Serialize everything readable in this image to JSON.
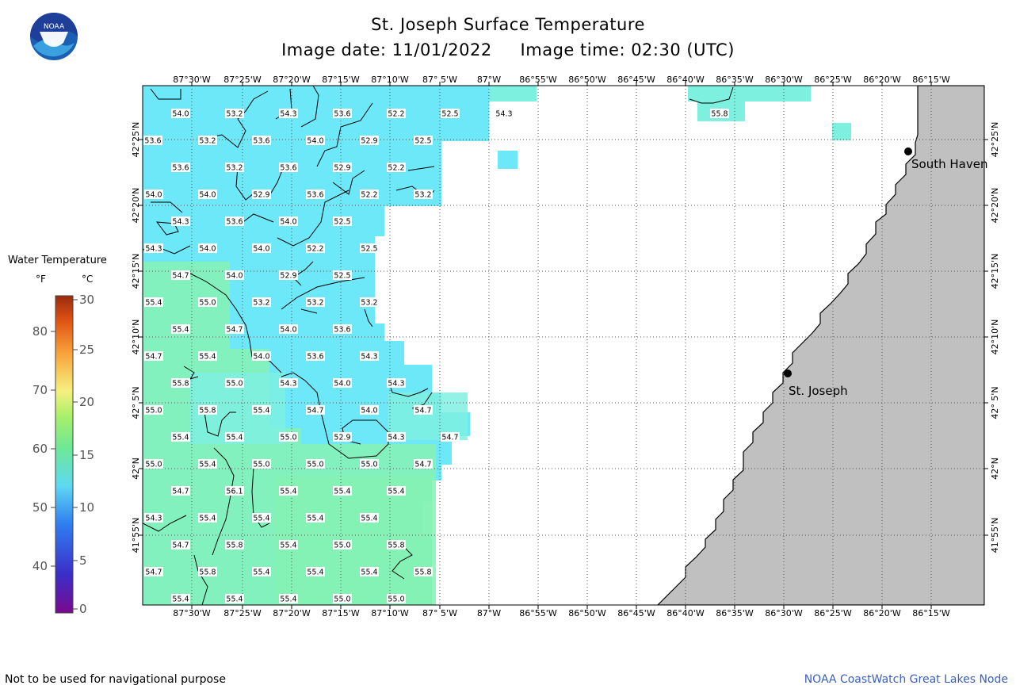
{
  "header": {
    "title": "St. Joseph Surface Temperature",
    "subtitle": "Image date: 11/01/2022     Image time: 02:30 (UTC)"
  },
  "logo": {
    "text": "NOAA",
    "icon": "noaa-logo-icon"
  },
  "legend": {
    "title": "Water Temperature",
    "unit_f": "°F",
    "unit_c": "°C",
    "f_ticks": [
      "80",
      "70",
      "60",
      "50",
      "40"
    ],
    "c_ticks": [
      "30",
      "25",
      "20",
      "15",
      "10",
      "5",
      "0"
    ]
  },
  "map": {
    "x_ticks": [
      "87°30'W",
      "87°25'W",
      "87°20'W",
      "87°15'W",
      "87°10'W",
      "87° 5'W",
      "87°W",
      "86°55'W",
      "86°50'W",
      "86°45'W",
      "86°40'W",
      "86°35'W",
      "86°30'W",
      "86°25'W",
      "86°20'W",
      "86°15'W"
    ],
    "y_ticks": [
      "42°25'N",
      "42°20'N",
      "42°15'N",
      "42°10'N",
      "42° 5'N",
      "42°N",
      "41°55'N"
    ],
    "cities": [
      {
        "name": "South Haven"
      },
      {
        "name": "St. Joseph"
      }
    ],
    "temperatures": [
      [
        "54.0",
        "53.2",
        "54.3",
        "53.6",
        "52.2",
        "52.5",
        "54.3",
        "55.8"
      ],
      [
        "53.6",
        "53.2",
        "53.6",
        "54.0",
        "52.9",
        "52.5"
      ],
      [
        "53.6",
        "53.2",
        "53.6",
        "52.9",
        "52.2"
      ],
      [
        "54.0",
        "54.0",
        "52.9",
        "53.6",
        "52.2",
        "53.2"
      ],
      [
        "54.3",
        "53.6",
        "54.0",
        "52.5"
      ],
      [
        "54.3",
        "54.0",
        "54.0",
        "52.2",
        "52.5"
      ],
      [
        "54.7",
        "54.0",
        "52.9",
        "52.5"
      ],
      [
        "55.4",
        "55.0",
        "53.2",
        "53.2",
        "53.2"
      ],
      [
        "55.4",
        "54.7",
        "54.0",
        "53.6"
      ],
      [
        "54.7",
        "55.4",
        "54.0",
        "53.6",
        "54.3"
      ],
      [
        "55.8",
        "55.0",
        "54.3",
        "54.0",
        "54.3"
      ],
      [
        "55.0",
        "55.8",
        "55.4",
        "54.7",
        "54.0",
        "54.7"
      ],
      [
        "55.4",
        "55.4",
        "55.0",
        "52.9",
        "54.3",
        "54.7"
      ],
      [
        "55.0",
        "55.4",
        "55.0",
        "55.0",
        "55.0",
        "54.7"
      ],
      [
        "54.7",
        "56.1",
        "55.4",
        "55.4",
        "55.4"
      ],
      [
        "54.3",
        "55.4",
        "55.4",
        "55.4",
        "55.4"
      ],
      [
        "54.7",
        "55.8",
        "55.4",
        "55.0",
        "55.8"
      ],
      [
        "54.7",
        "55.8",
        "55.4",
        "55.4",
        "55.4",
        "55.8"
      ],
      [
        "55.4",
        "55.4",
        "55.4",
        "55.0",
        "55.0"
      ]
    ],
    "colors": {
      "cyan": "#6de8f8",
      "light": "#7ef0e0",
      "green": "#86f2b4",
      "land": "#c0c0c0"
    }
  },
  "footer": {
    "left": "Not to be used for navigational purpose",
    "right": "NOAA CoastWatch Great Lakes Node"
  }
}
